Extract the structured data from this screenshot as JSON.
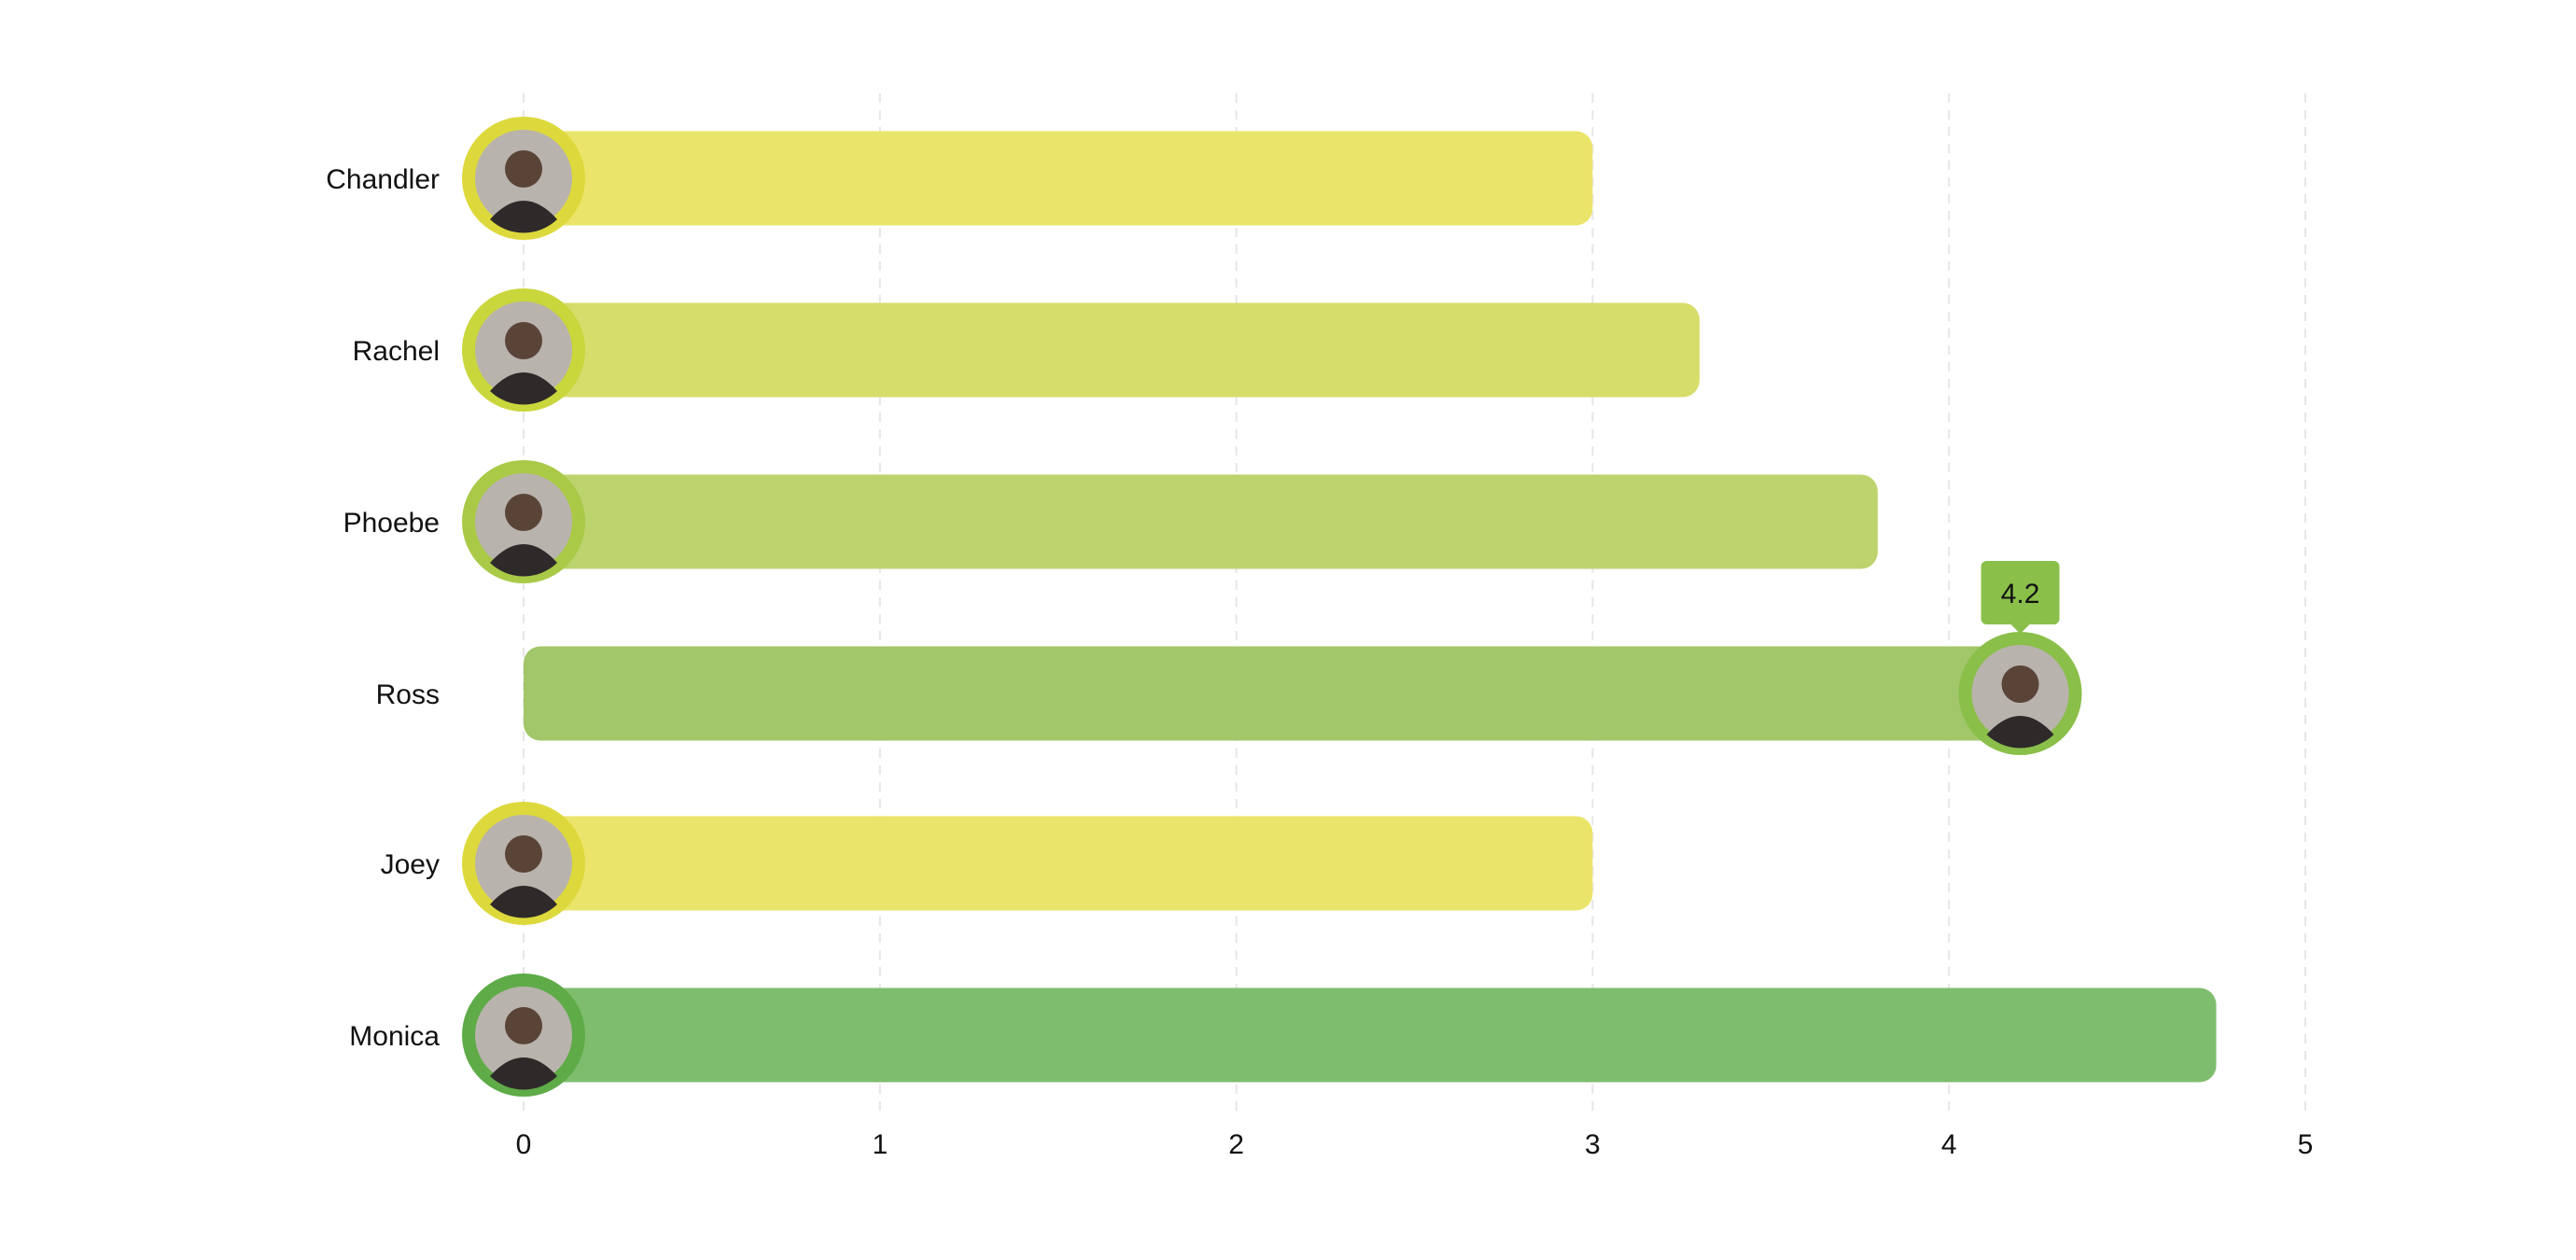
{
  "chart_data": {
    "type": "bar",
    "orientation": "horizontal",
    "categories": [
      "Chandler",
      "Rachel",
      "Phoebe",
      "Ross",
      "Joey",
      "Monica"
    ],
    "values": [
      3,
      3.3,
      3.8,
      4.2,
      3,
      4.75
    ],
    "xlim": [
      0,
      5
    ],
    "xticks": [
      "0",
      "1",
      "2",
      "3",
      "4",
      "5"
    ],
    "grid": "vertical dashed",
    "bar_colors": [
      "#EBE46A",
      "#D7DD6A",
      "#BDD36E",
      "#A1C76A",
      "#EBE46A",
      "#7FBD6E"
    ],
    "ring_colors": [
      "#DDD93C",
      "#C9D63C",
      "#A9C947",
      "#8ABF4A",
      "#DDD93C",
      "#5EAB48"
    ],
    "avatar_position": [
      "start",
      "start",
      "start",
      "end",
      "start",
      "start"
    ],
    "tooltip": {
      "category": "Ross",
      "text": "4.2",
      "color": "#8ABF4A"
    }
  }
}
